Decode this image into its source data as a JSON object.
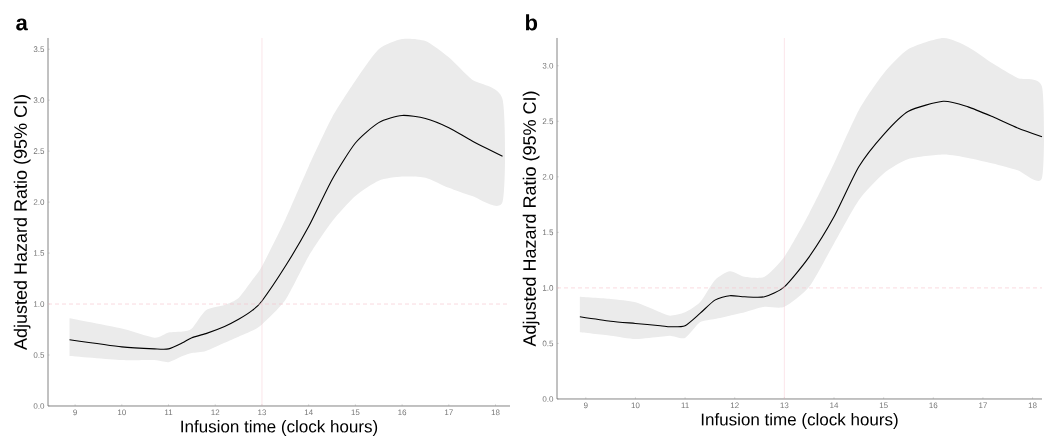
{
  "chart_data": [
    {
      "type": "line",
      "title": "a",
      "xlabel": "Infusion time (clock hours)",
      "ylabel": "Adjusted Hazard Ratio (95% CI)",
      "x": [
        8.88,
        10,
        10.7,
        11,
        11.3,
        11.5,
        11.8,
        12.2,
        12.5,
        12.8,
        13,
        13.5,
        14,
        14.5,
        15,
        15.5,
        16,
        16.5,
        17,
        17.5,
        18.15
      ],
      "series": [
        {
          "color": "#000000",
          "values": [
            0.65,
            0.58,
            0.56,
            0.56,
            0.62,
            0.67,
            0.71,
            0.78,
            0.85,
            0.94,
            1.03,
            1.37,
            1.76,
            2.22,
            2.58,
            2.78,
            2.85,
            2.82,
            2.73,
            2.6,
            2.45
          ],
          "lower": [
            0.49,
            0.45,
            0.45,
            0.43,
            0.49,
            0.52,
            0.54,
            0.62,
            0.68,
            0.74,
            0.8,
            1.04,
            1.47,
            1.81,
            2.06,
            2.21,
            2.25,
            2.24,
            2.14,
            2.06,
            2.0
          ],
          "upper": [
            0.86,
            0.76,
            0.67,
            0.72,
            0.73,
            0.76,
            0.94,
            0.99,
            1.06,
            1.24,
            1.37,
            1.83,
            2.35,
            2.83,
            3.19,
            3.5,
            3.6,
            3.58,
            3.42,
            3.2,
            3.01
          ]
        }
      ],
      "xlim": [
        8.42,
        18.31
      ],
      "ylim": [
        0,
        3.61
      ],
      "xticks": [
        9,
        10,
        11,
        12,
        13,
        14,
        15,
        16,
        17,
        18
      ],
      "yticks": [
        {
          "value": 0,
          "label": "0.0"
        },
        {
          "value": 0.5,
          "label": "0.5"
        },
        {
          "value": 1,
          "label": "1.0"
        },
        {
          "value": 1.5,
          "label": "1.5"
        },
        {
          "value": 2,
          "label": "2.0"
        },
        {
          "value": 2.5,
          "label": "2.5"
        },
        {
          "value": 3,
          "label": "3.0"
        },
        {
          "value": 3.5,
          "label": "3.5"
        }
      ],
      "ref_lines": [
        {
          "axis": "y",
          "value": 1,
          "color": "#f7c1cb",
          "line_style": "dashed"
        },
        {
          "axis": "x",
          "value": 13,
          "color": "#f7c1cb",
          "line_style": "solid"
        }
      ]
    },
    {
      "type": "line",
      "title": "b",
      "xlabel": "Infusion time (clock hours)",
      "ylabel": "Adjusted Hazard Ratio (95% CI)",
      "x": [
        8.88,
        9.5,
        10,
        10.5,
        10.7,
        11,
        11.3,
        11.6,
        11.9,
        12.2,
        12.6,
        13,
        13.5,
        14,
        14.5,
        15,
        15.5,
        16.2,
        16.7,
        17.2,
        17.7,
        18.19
      ],
      "series": [
        {
          "color": "#000000",
          "values": [
            0.74,
            0.7,
            0.68,
            0.66,
            0.65,
            0.66,
            0.77,
            0.89,
            0.93,
            0.92,
            0.92,
            1.01,
            1.28,
            1.64,
            2.09,
            2.38,
            2.59,
            2.68,
            2.63,
            2.54,
            2.44,
            2.36
          ],
          "lower": [
            0.6,
            0.57,
            0.54,
            0.56,
            0.57,
            0.55,
            0.69,
            0.72,
            0.75,
            0.78,
            0.83,
            0.83,
            1.01,
            1.4,
            1.79,
            2.03,
            2.16,
            2.2,
            2.17,
            2.12,
            2.06,
            1.99
          ],
          "upper": [
            0.92,
            0.9,
            0.87,
            0.78,
            0.75,
            0.78,
            0.87,
            1.07,
            1.15,
            1.1,
            1.1,
            1.28,
            1.67,
            2.12,
            2.6,
            2.93,
            3.15,
            3.25,
            3.17,
            3.02,
            2.89,
            2.81
          ]
        }
      ],
      "xlim": [
        8.42,
        18.19
      ],
      "ylim": [
        0,
        3.25
      ],
      "xticks": [
        9,
        10,
        11,
        12,
        13,
        14,
        15,
        16,
        17,
        18
      ],
      "yticks": [
        {
          "value": 0,
          "label": "0.0"
        },
        {
          "value": 0.5,
          "label": "0.5"
        },
        {
          "value": 1,
          "label": "1.0"
        },
        {
          "value": 1.5,
          "label": "1.5"
        },
        {
          "value": 2,
          "label": "2.0"
        },
        {
          "value": 2.5,
          "label": "2.5"
        },
        {
          "value": 3,
          "label": "3.0"
        }
      ],
      "ref_lines": [
        {
          "axis": "y",
          "value": 1,
          "color": "#f7c1cb",
          "line_style": "dashed"
        },
        {
          "axis": "x",
          "value": 13,
          "color": "#f7c1cb",
          "line_style": "solid"
        }
      ]
    }
  ]
}
